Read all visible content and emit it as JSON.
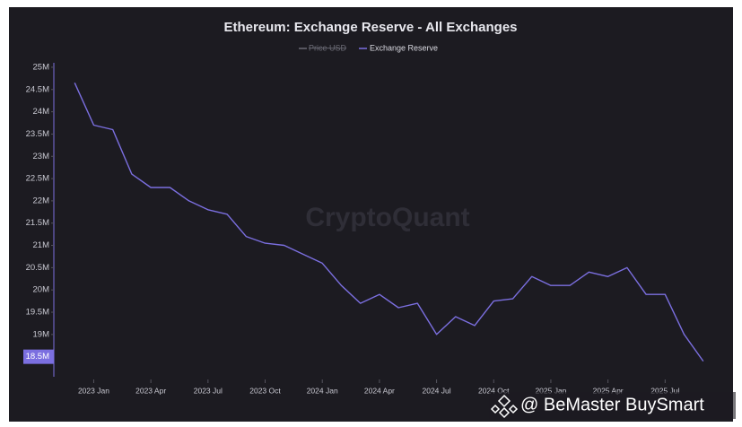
{
  "chart_data": {
    "type": "line",
    "title": "Ethereum: Exchange Reserve - All Exchanges",
    "legend": [
      {
        "name": "Price USD",
        "color": "#6b6b75",
        "hidden": true
      }
    ],
    "watermark": "CryptoQuant",
    "credit": "@ BeMaster BuySmart",
    "x": [
      "2022-12",
      "2023-01",
      "2023-02",
      "2023-03",
      "2023-04",
      "2023-05",
      "2023-06",
      "2023-07",
      "2023-08",
      "2023-09",
      "2023-10",
      "2023-11",
      "2023-12",
      "2024-01",
      "2024-02",
      "2024-03",
      "2024-04",
      "2024-05",
      "2024-06",
      "2024-07",
      "2024-08",
      "2024-09",
      "2024-10",
      "2024-11",
      "2024-12",
      "2025-01",
      "2025-02",
      "2025-03",
      "2025-04",
      "2025-05",
      "2025-06",
      "2025-07",
      "2025-08",
      "2025-09"
    ],
    "series": [
      {
        "name": "Exchange Reserve",
        "color": "#7b6fe0",
        "values": [
          24.65,
          23.7,
          23.6,
          22.6,
          22.3,
          22.3,
          22.0,
          21.8,
          21.7,
          21.2,
          21.05,
          21.0,
          20.8,
          20.6,
          20.1,
          19.7,
          19.9,
          19.6,
          19.7,
          19.0,
          19.4,
          19.2,
          19.75,
          19.8,
          20.3,
          20.1,
          20.1,
          20.4,
          20.3,
          20.5,
          19.9,
          19.9,
          19.0,
          18.4
        ]
      }
    ],
    "xlim": [
      "2022-11",
      "2025-10"
    ],
    "xticks": [
      {
        "value": "2023-01",
        "label": "2023 Jan"
      },
      {
        "value": "2023-04",
        "label": "2023 Apr"
      },
      {
        "value": "2023-07",
        "label": "2023 Jul"
      },
      {
        "value": "2023-10",
        "label": "2023 Oct"
      },
      {
        "value": "2024-01",
        "label": "2024 Jan"
      },
      {
        "value": "2024-04",
        "label": "2024 Apr"
      },
      {
        "value": "2024-07",
        "label": "2024 Jul"
      },
      {
        "value": "2024-10",
        "label": "2024 Oct"
      },
      {
        "value": "2025-01",
        "label": "2025 Jan"
      },
      {
        "value": "2025-04",
        "label": "2025 Apr"
      },
      {
        "value": "2025-07",
        "label": "2025 Jul"
      }
    ],
    "ylim": [
      18.05,
      25.1
    ],
    "yticks": [
      {
        "value": 18.5,
        "label": "18.5M"
      },
      {
        "value": 19,
        "label": "19M"
      },
      {
        "value": 19.5,
        "label": "19.5M"
      },
      {
        "value": 20,
        "label": "20M"
      },
      {
        "value": 20.5,
        "label": "20.5M"
      },
      {
        "value": 21,
        "label": "21M"
      },
      {
        "value": 21.5,
        "label": "21.5M"
      },
      {
        "value": 22,
        "label": "22M"
      },
      {
        "value": 22.5,
        "label": "22.5M"
      },
      {
        "value": 23,
        "label": "23M"
      },
      {
        "value": 23.5,
        "label": "23.5M"
      },
      {
        "value": 24,
        "label": "24M"
      },
      {
        "value": 24.5,
        "label": "24.5M"
      },
      {
        "value": 25,
        "label": "25M"
      }
    ],
    "grid": false
  }
}
